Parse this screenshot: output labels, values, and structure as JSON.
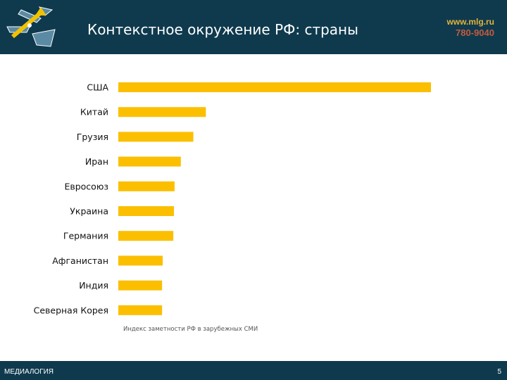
{
  "header": {
    "title": "Контекстное окружение РФ: страны",
    "site": "www.mlg.ru",
    "phone": "780-9040",
    "logo_icon": "medialogia-compass-logo"
  },
  "colors": {
    "header_bg": "#0f3a4e",
    "bar": "#fbbf00",
    "logo_yellow": "#f2c200",
    "logo_blue": "#5b8ba4"
  },
  "chart_data": {
    "type": "bar",
    "orientation": "horizontal",
    "categories": [
      "США",
      "Китай",
      "Грузия",
      "Иран",
      "Евросоюз",
      "Украина",
      "Германия",
      "Афганистан",
      "Индия",
      "Северная Корея"
    ],
    "values": [
      100,
      28,
      24,
      20,
      18,
      17.8,
      17.6,
      14.2,
      14,
      14
    ],
    "xlabel": "Индекс заметности РФ в зарубежных СМИ",
    "ylabel": "",
    "xlim": [
      0,
      100
    ],
    "grid": false,
    "legend": "none"
  },
  "footer": {
    "brand": "МЕДИАЛОГИЯ",
    "page": "5"
  }
}
